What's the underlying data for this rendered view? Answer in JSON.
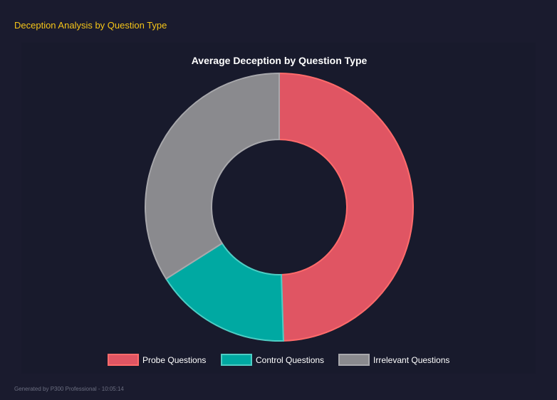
{
  "header": {
    "title": "Deception Analysis by Question Type"
  },
  "chart_data": {
    "type": "doughnut",
    "title": "Average Deception by Question Type",
    "categories": [
      "Probe Questions",
      "Control Questions",
      "Irrelevant Questions"
    ],
    "values": [
      49.5,
      16.5,
      34.0
    ],
    "colors": [
      "#e05563",
      "#00a9a2",
      "#8a8a8e"
    ],
    "border_colors": [
      "#ff6b6b",
      "#4ecdc4",
      "#a8a8ac"
    ],
    "legend_position": "bottom"
  },
  "footer": {
    "text": "Generated by P300 Professional - 10:05:14"
  }
}
